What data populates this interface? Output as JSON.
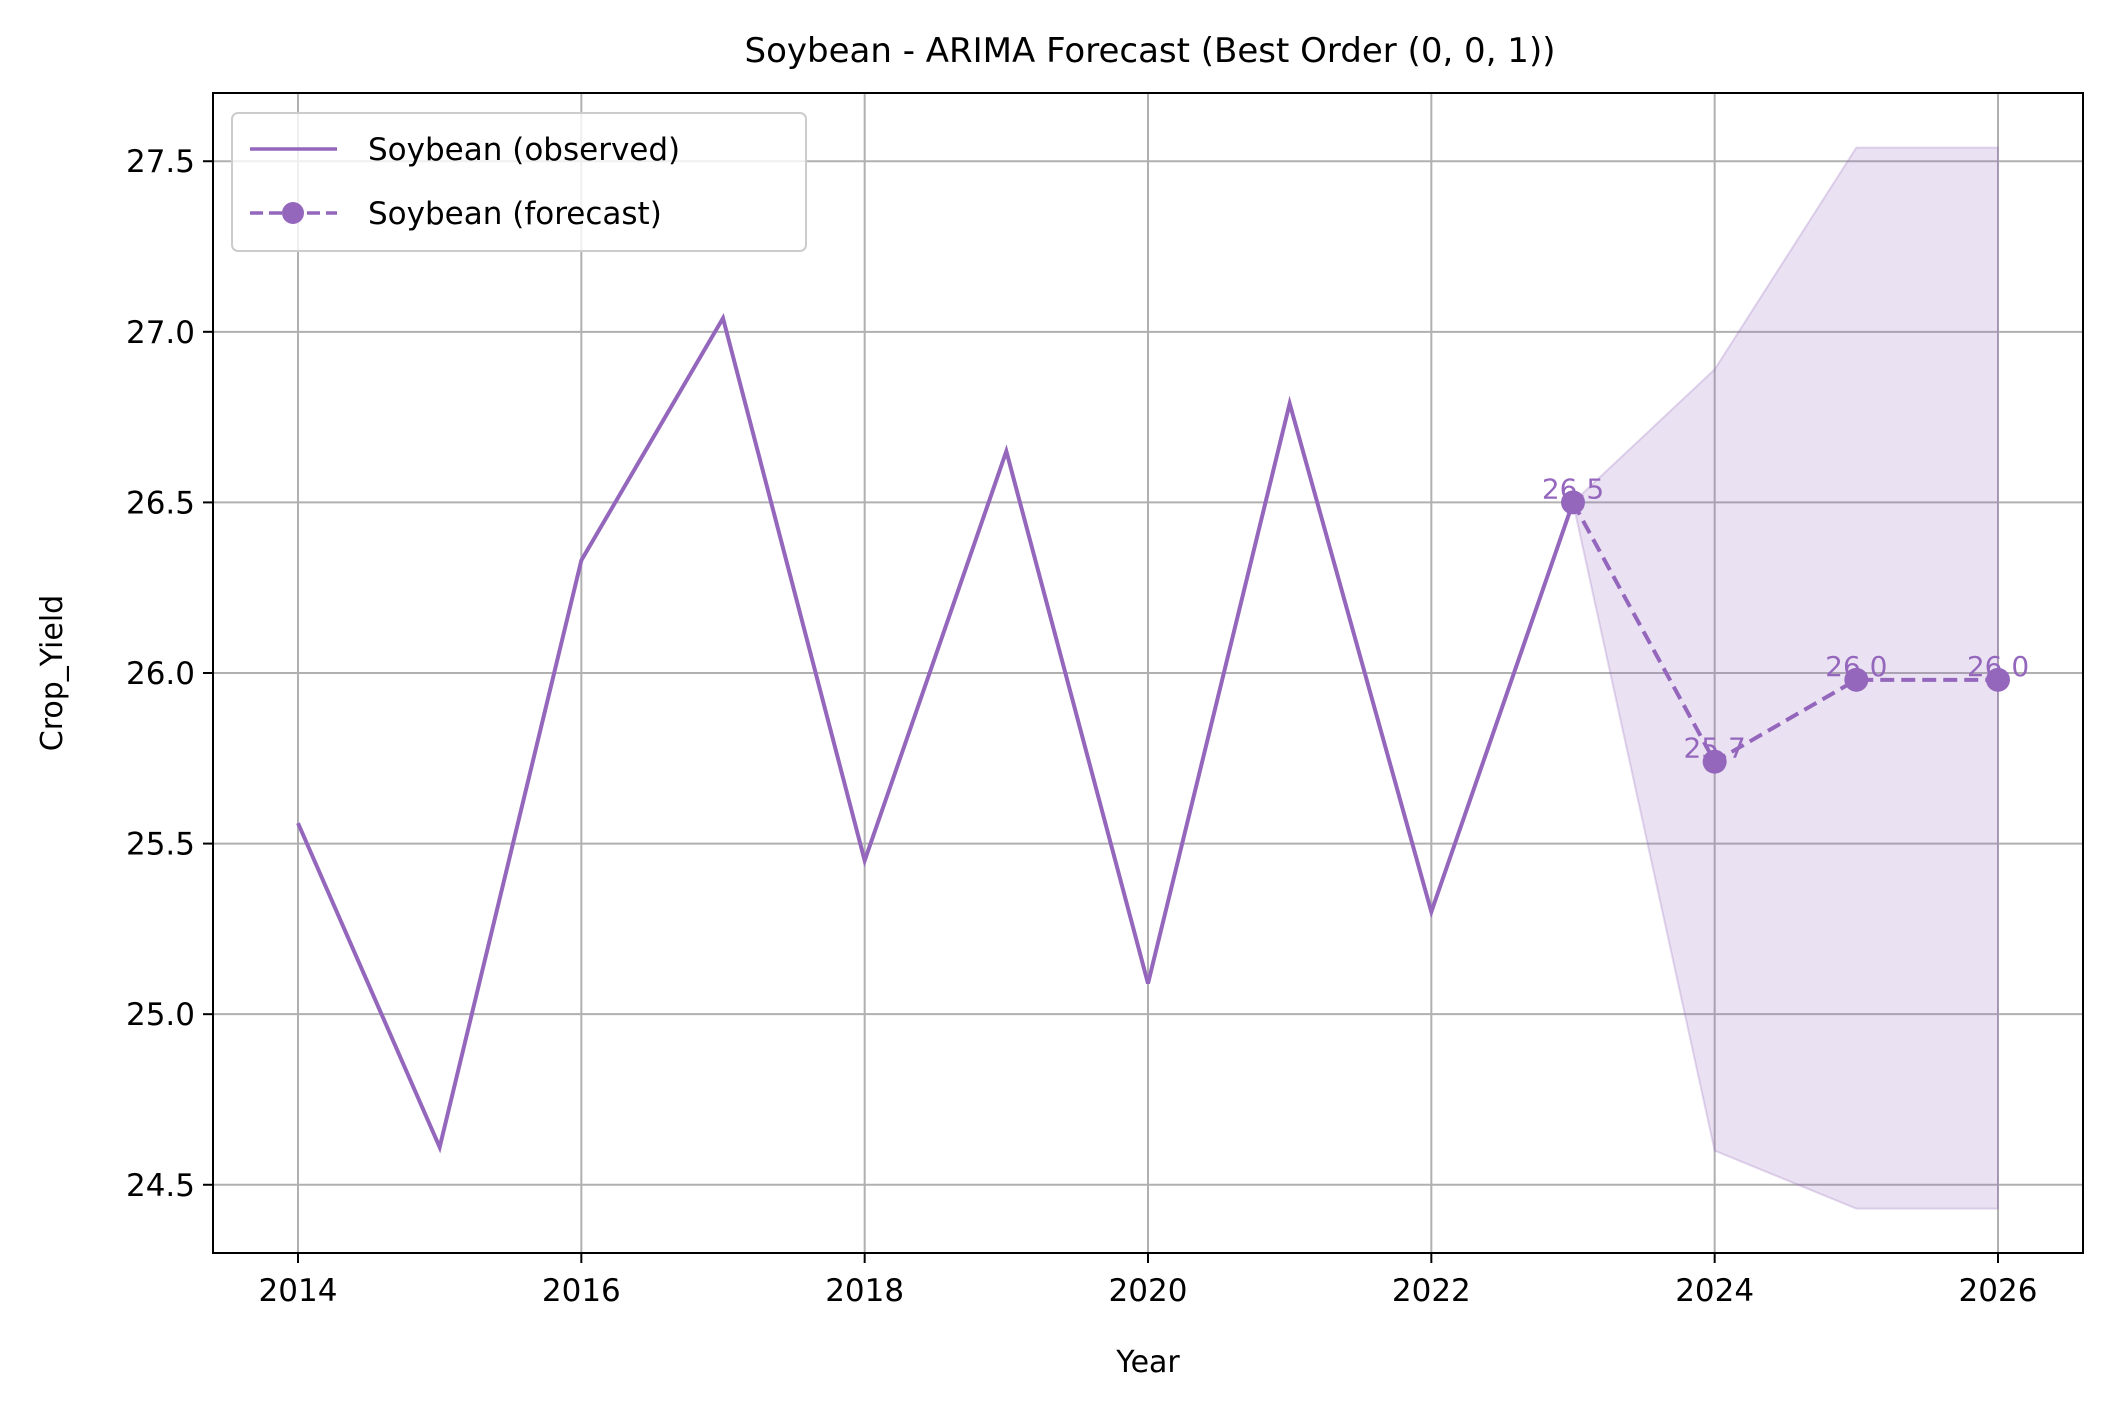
{
  "chart_data": {
    "type": "line",
    "title": "Soybean - ARIMA Forecast (Best Order (0, 0, 1))",
    "xlabel": "Year",
    "ylabel": "Crop_Yield",
    "xlim": [
      2013.4,
      2026.6
    ],
    "ylim": [
      24.3,
      27.7
    ],
    "xticks": [
      2014,
      2016,
      2018,
      2020,
      2022,
      2024,
      2026
    ],
    "yticks": [
      24.5,
      25.0,
      25.5,
      26.0,
      26.5,
      27.0,
      27.5
    ],
    "xtick_labels": [
      "2014",
      "2016",
      "2018",
      "2020",
      "2022",
      "2024",
      "2026"
    ],
    "ytick_labels": [
      "24.5",
      "25.0",
      "25.5",
      "26.0",
      "26.5",
      "27.0",
      "27.5"
    ],
    "grid": true,
    "legend_position": "top-left",
    "series": [
      {
        "name": "Soybean (observed)",
        "style": "solid-line",
        "color": "#9467bd",
        "x": [
          2014,
          2015,
          2016,
          2017,
          2018,
          2019,
          2020,
          2021,
          2022,
          2023
        ],
        "y": [
          25.56,
          24.61,
          26.33,
          27.04,
          25.45,
          26.65,
          25.09,
          26.79,
          25.3,
          26.5
        ]
      },
      {
        "name": "Soybean (forecast)",
        "style": "dashed-line-with-markers",
        "color": "#9467bd",
        "x": [
          2023,
          2024,
          2025,
          2026
        ],
        "y": [
          26.5,
          25.74,
          25.98,
          25.98
        ],
        "point_labels": [
          "26.5",
          "25.7",
          "26.0",
          "26.0"
        ]
      }
    ],
    "confidence_band": {
      "color": "#9467bd",
      "x": [
        2023,
        2024,
        2025,
        2026
      ],
      "lower": [
        26.5,
        24.6,
        24.43,
        24.43
      ],
      "upper": [
        26.5,
        26.89,
        27.54,
        27.54
      ]
    }
  }
}
